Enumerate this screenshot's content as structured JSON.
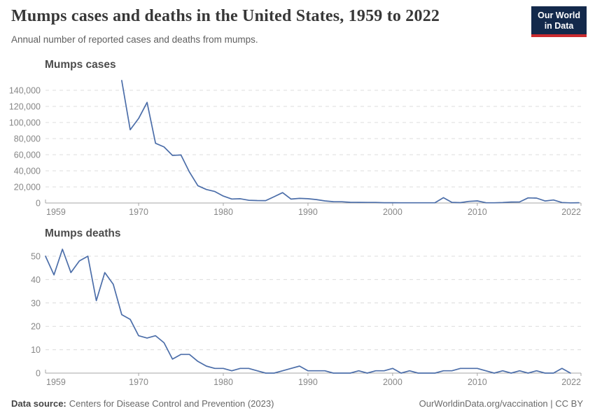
{
  "header": {
    "title": "Mumps cases and deaths in the United States, 1959 to 2022",
    "subtitle": "Annual number of reported cases and deaths from mumps.",
    "logo": {
      "line1": "Our World",
      "line2": "in Data"
    }
  },
  "footer": {
    "source_label": "Data source:",
    "source_text": "Centers for Disease Control and Prevention (2023)",
    "link_text": "OurWorldinData.org/vaccination",
    "separator": " | ",
    "license_text": "CC BY"
  },
  "colors": {
    "line": "#4C6EA9",
    "grid": "#dcdcdc",
    "axis": "#a5a5a5",
    "tick_label": "#878787",
    "chart_title": "#4c4c4c",
    "logo_bg": "#13294b",
    "logo_red": "#cb2b2f"
  },
  "chart_data": [
    {
      "type": "line",
      "title": "Mumps cases",
      "xlim": [
        1959,
        2022
      ],
      "ylim": [
        0,
        140000
      ],
      "x_ticks": [
        1959,
        1970,
        1980,
        1990,
        2000,
        2010,
        2022
      ],
      "y_ticks": [
        0,
        20000,
        40000,
        60000,
        80000,
        100000,
        120000,
        140000
      ],
      "grid": true,
      "legend": null,
      "x": [
        1968,
        1969,
        1970,
        1971,
        1972,
        1973,
        1974,
        1975,
        1976,
        1977,
        1978,
        1979,
        1980,
        1981,
        1982,
        1983,
        1984,
        1985,
        1986,
        1987,
        1988,
        1989,
        1990,
        1991,
        1992,
        1993,
        1994,
        1995,
        1996,
        1997,
        1998,
        1999,
        2000,
        2001,
        2002,
        2003,
        2004,
        2005,
        2006,
        2007,
        2008,
        2009,
        2010,
        2011,
        2012,
        2013,
        2014,
        2015,
        2016,
        2017,
        2018,
        2019,
        2020,
        2021,
        2022
      ],
      "values": [
        152209,
        90918,
        104953,
        124939,
        74215,
        69612,
        59128,
        59647,
        38492,
        21436,
        16817,
        14225,
        8576,
        4941,
        5270,
        3355,
        3021,
        2982,
        7790,
        12848,
        4866,
        5712,
        5292,
        4264,
        2572,
        1692,
        1537,
        906,
        751,
        683,
        666,
        387,
        338,
        266,
        270,
        231,
        258,
        314,
        6584,
        800,
        454,
        1991,
        2612,
        370,
        229,
        584,
        1223,
        1329,
        6369,
        6109,
        2515,
        3780,
        616,
        155,
        322
      ]
    },
    {
      "type": "line",
      "title": "Mumps deaths",
      "xlim": [
        1959,
        2022
      ],
      "ylim": [
        0,
        50
      ],
      "x_ticks": [
        1959,
        1970,
        1980,
        1990,
        2000,
        2010,
        2022
      ],
      "y_ticks": [
        0,
        10,
        20,
        30,
        40,
        50
      ],
      "grid": true,
      "legend": null,
      "x": [
        1959,
        1960,
        1961,
        1962,
        1963,
        1964,
        1965,
        1966,
        1967,
        1968,
        1969,
        1970,
        1971,
        1972,
        1973,
        1974,
        1975,
        1976,
        1977,
        1978,
        1979,
        1980,
        1981,
        1982,
        1983,
        1984,
        1985,
        1986,
        1987,
        1988,
        1989,
        1990,
        1991,
        1992,
        1993,
        1994,
        1995,
        1996,
        1997,
        1998,
        1999,
        2000,
        2001,
        2002,
        2003,
        2004,
        2005,
        2006,
        2007,
        2008,
        2009,
        2010,
        2011,
        2012,
        2013,
        2014,
        2015,
        2016,
        2017,
        2018,
        2019,
        2020,
        2021
      ],
      "values": [
        50,
        42,
        53,
        43,
        48,
        50,
        31,
        43,
        38,
        25,
        23,
        16,
        15,
        16,
        13,
        6,
        8,
        8,
        5,
        3,
        2,
        2,
        1,
        2,
        2,
        1,
        0,
        0,
        1,
        2,
        3,
        1,
        1,
        1,
        0,
        0,
        0,
        1,
        0,
        1,
        1,
        2,
        0,
        1,
        0,
        0,
        0,
        1,
        1,
        2,
        2,
        2,
        1,
        0,
        1,
        0,
        1,
        0,
        1,
        0,
        0,
        2,
        0
      ]
    }
  ]
}
